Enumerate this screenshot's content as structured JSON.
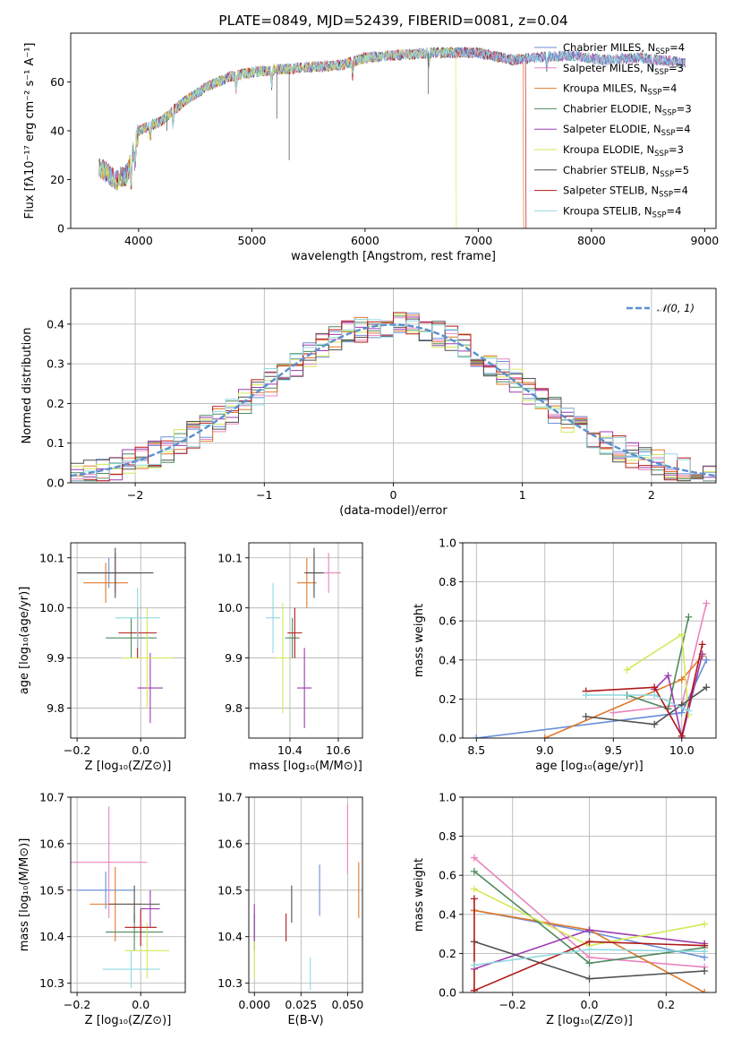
{
  "colors": {
    "Chabrier MILES": "#6a8fd8",
    "Salpeter MILES": "#e985be",
    "Kroupa MILES": "#e0792b",
    "Chabrier ELODIE": "#4f8a5f",
    "Salpeter ELODIE": "#9b3bb0",
    "Kroupa ELODIE": "#d3e85a",
    "Chabrier STELIB": "#505050",
    "Salpeter STELIB": "#b01818",
    "Kroupa STELIB": "#8fd9e0",
    "gaussian": "#5b8fd0"
  },
  "models": [
    "Chabrier MILES",
    "Salpeter MILES",
    "Kroupa MILES",
    "Chabrier ELODIE",
    "Salpeter ELODIE",
    "Kroupa ELODIE",
    "Chabrier STELIB",
    "Salpeter STELIB",
    "Kroupa STELIB"
  ],
  "chart_data": [
    {
      "id": "spectrum",
      "type": "line",
      "title": "PLATE=0849, MJD=52439, FIBERID=0081, z=0.04",
      "xlabel": "wavelength [Angstrom, rest frame]",
      "ylabel": "Flux [fλ10⁻¹⁷ erg cm⁻² s⁻¹ A⁻¹]",
      "xlim": [
        3400,
        9100
      ],
      "ylim": [
        0,
        80
      ],
      "xticks": [
        4000,
        5000,
        6000,
        7000,
        8000,
        9000
      ],
      "yticks": [
        0,
        20,
        40,
        60
      ],
      "continuum": [
        [
          3650,
          25
        ],
        [
          3800,
          20
        ],
        [
          3900,
          22
        ],
        [
          4000,
          40
        ],
        [
          4200,
          44
        ],
        [
          4400,
          52
        ],
        [
          4600,
          58
        ],
        [
          4800,
          62
        ],
        [
          5000,
          64
        ],
        [
          5200,
          65
        ],
        [
          5500,
          66
        ],
        [
          5800,
          67
        ],
        [
          6000,
          70
        ],
        [
          6300,
          71
        ],
        [
          6600,
          72
        ],
        [
          7000,
          72
        ],
        [
          7300,
          69
        ],
        [
          7500,
          70
        ],
        [
          7800,
          71
        ],
        [
          8100,
          69
        ],
        [
          8400,
          70
        ],
        [
          8800,
          68
        ]
      ],
      "legend": [
        {
          "label": "Chabrier MILES, N",
          "sub": "SSP",
          "tail": "=4"
        },
        {
          "label": "Salpeter MILES, N",
          "sub": "SSP",
          "tail": "=3"
        },
        {
          "label": "Kroupa MILES, N",
          "sub": "SSP",
          "tail": "=4"
        },
        {
          "label": "Chabrier ELODIE, N",
          "sub": "SSP",
          "tail": "=3"
        },
        {
          "label": "Salpeter ELODIE, N",
          "sub": "SSP",
          "tail": "=4"
        },
        {
          "label": "Kroupa ELODIE, N",
          "sub": "SSP",
          "tail": "=3"
        },
        {
          "label": "Chabrier STELIB, N",
          "sub": "SSP",
          "tail": "=5"
        },
        {
          "label": "Salpeter STELIB, N",
          "sub": "SSP",
          "tail": "=4"
        },
        {
          "label": "Kroupa STELIB, N",
          "sub": "SSP",
          "tail": "=4"
        }
      ],
      "legend_position": "top-right",
      "cutoffs": [
        {
          "model": "Kroupa ELODIE",
          "x": 6800
        },
        {
          "model": "Salpeter STELIB",
          "x": 7420
        },
        {
          "model": "Kroupa MILES",
          "x": 7400
        }
      ]
    },
    {
      "id": "residuals",
      "type": "line",
      "xlabel": "(data-model)/error",
      "ylabel": "Normed distribution",
      "xlim": [
        -2.5,
        2.5
      ],
      "ylim": [
        0,
        0.49
      ],
      "xticks": [
        -2,
        -1,
        0,
        1,
        2
      ],
      "yticks": [
        0.0,
        0.1,
        0.2,
        0.3,
        0.4
      ],
      "legend_label": "𝒩(0, 1)",
      "legend_position": "top-right",
      "series_kind": "step histograms of each model's residuals with a dashed N(0,1) curve"
    },
    {
      "id": "age_vs_Z",
      "type": "scatter",
      "xlabel": "Z [log₁₀(Z/Z⊙)]",
      "ylabel": "age  [log₁₀(age/yr)]",
      "xlim": [
        -0.22,
        0.14
      ],
      "ylim": [
        9.74,
        10.13
      ],
      "xticks": [
        -0.2,
        0.0
      ],
      "yticks": [
        9.8,
        9.9,
        10.0,
        10.1
      ],
      "points": [
        {
          "model": "Chabrier MILES",
          "x": -0.1,
          "y": 10.07,
          "xerr": 0.1,
          "yerr": 0.03
        },
        {
          "model": "Salpeter MILES",
          "x": -0.08,
          "y": 10.07,
          "xerr": 0.1,
          "yerr": 0.04
        },
        {
          "model": "Kroupa MILES",
          "x": -0.11,
          "y": 10.05,
          "xerr": 0.07,
          "yerr": 0.04
        },
        {
          "model": "Chabrier ELODIE",
          "x": -0.03,
          "y": 9.94,
          "xerr": 0.08,
          "yerr": 0.04
        },
        {
          "model": "Salpeter ELODIE",
          "x": 0.03,
          "y": 9.84,
          "xerr": 0.04,
          "yerr": 0.07
        },
        {
          "model": "Kroupa ELODIE",
          "x": 0.02,
          "y": 9.9,
          "xerr": 0.08,
          "yerr": 0.1
        },
        {
          "model": "Chabrier STELIB",
          "x": -0.08,
          "y": 10.07,
          "xerr": 0.12,
          "yerr": 0.05
        },
        {
          "model": "Salpeter STELIB",
          "x": -0.01,
          "y": 9.95,
          "xerr": 0.06,
          "yerr": 0.05
        },
        {
          "model": "Kroupa STELIB",
          "x": -0.01,
          "y": 9.98,
          "xerr": 0.07,
          "yerr": 0.06
        }
      ]
    },
    {
      "id": "age_vs_mass",
      "type": "scatter",
      "xlabel": "mass [log₁₀(M/M⊙)]",
      "ylabel": "",
      "xlim": [
        10.23,
        10.7
      ],
      "ylim": [
        9.74,
        10.13
      ],
      "xticks": [
        10.4,
        10.6
      ],
      "yticks": [
        9.8,
        9.9,
        10.0,
        10.1
      ],
      "points": [
        {
          "model": "Chabrier MILES",
          "x": 10.5,
          "y": 10.07,
          "xerr": 0.03,
          "yerr": 0.04
        },
        {
          "model": "Salpeter MILES",
          "x": 10.56,
          "y": 10.07,
          "xerr": 0.05,
          "yerr": 0.04
        },
        {
          "model": "Kroupa MILES",
          "x": 10.47,
          "y": 10.05,
          "xerr": 0.04,
          "yerr": 0.05
        },
        {
          "model": "Chabrier ELODIE",
          "x": 10.41,
          "y": 9.94,
          "xerr": 0.03,
          "yerr": 0.04
        },
        {
          "model": "Salpeter ELODIE",
          "x": 10.46,
          "y": 9.84,
          "xerr": 0.03,
          "yerr": 0.08
        },
        {
          "model": "Kroupa ELODIE",
          "x": 10.37,
          "y": 9.9,
          "xerr": 0.03,
          "yerr": 0.11
        },
        {
          "model": "Chabrier STELIB",
          "x": 10.5,
          "y": 10.07,
          "xerr": 0.04,
          "yerr": 0.05
        },
        {
          "model": "Salpeter STELIB",
          "x": 10.42,
          "y": 9.95,
          "xerr": 0.03,
          "yerr": 0.05
        },
        {
          "model": "Kroupa STELIB",
          "x": 10.33,
          "y": 9.98,
          "xerr": 0.03,
          "yerr": 0.07
        }
      ]
    },
    {
      "id": "massweight_vs_age",
      "type": "line",
      "xlabel": "age  [log₁₀(age/yr)]",
      "ylabel": "mass weight",
      "xlim": [
        8.4,
        10.25
      ],
      "ylim": [
        0.0,
        1.0
      ],
      "xticks": [
        8.5,
        9.0,
        9.5,
        10.0
      ],
      "yticks": [
        0.0,
        0.2,
        0.4,
        0.6,
        0.8,
        1.0
      ],
      "series": [
        {
          "model": "Chabrier MILES",
          "x": [
            8.5,
            10.0,
            10.18
          ],
          "y": [
            0.0,
            0.13,
            0.4
          ]
        },
        {
          "model": "Salpeter MILES",
          "x": [
            9.5,
            10.0,
            10.18
          ],
          "y": [
            0.13,
            0.17,
            0.69
          ]
        },
        {
          "model": "Kroupa MILES",
          "x": [
            9.0,
            10.0,
            10.15
          ],
          "y": [
            0.0,
            0.3,
            0.42
          ]
        },
        {
          "model": "Chabrier ELODIE",
          "x": [
            9.6,
            9.9,
            10.05
          ],
          "y": [
            0.22,
            0.15,
            0.62
          ]
        },
        {
          "model": "Salpeter ELODIE",
          "x": [
            9.8,
            9.9,
            10.0,
            10.15
          ],
          "y": [
            0.25,
            0.32,
            0.0,
            0.43
          ]
        },
        {
          "model": "Kroupa ELODIE",
          "x": [
            9.6,
            10.0,
            10.05
          ],
          "y": [
            0.35,
            0.53,
            0.12
          ]
        },
        {
          "model": "Chabrier STELIB",
          "x": [
            9.3,
            9.8,
            10.0,
            10.18
          ],
          "y": [
            0.11,
            0.07,
            0.17,
            0.26
          ]
        },
        {
          "model": "Salpeter STELIB",
          "x": [
            9.3,
            9.8,
            10.0,
            10.15
          ],
          "y": [
            0.24,
            0.26,
            0.01,
            0.48
          ]
        },
        {
          "model": "Kroupa STELIB",
          "x": [
            9.3,
            9.8,
            10.05
          ],
          "y": [
            0.22,
            0.22,
            0.14
          ]
        }
      ]
    },
    {
      "id": "mass_vs_Z",
      "type": "scatter",
      "xlabel": "Z [log₁₀(Z/Z⊙)]",
      "ylabel": "mass [log₁₀(M/M⊙)]",
      "xlim": [
        -0.22,
        0.14
      ],
      "ylim": [
        10.28,
        10.7
      ],
      "xticks": [
        -0.2,
        0.0
      ],
      "yticks": [
        10.3,
        10.4,
        10.5,
        10.6,
        10.7
      ],
      "points": [
        {
          "model": "Chabrier MILES",
          "x": -0.11,
          "y": 10.5,
          "xerr": 0.09,
          "yerr": 0.04
        },
        {
          "model": "Salpeter MILES",
          "x": -0.1,
          "y": 10.56,
          "xerr": 0.12,
          "yerr": 0.12
        },
        {
          "model": "Kroupa MILES",
          "x": -0.08,
          "y": 10.47,
          "xerr": 0.08,
          "yerr": 0.08
        },
        {
          "model": "Chabrier ELODIE",
          "x": -0.02,
          "y": 10.41,
          "xerr": 0.09,
          "yerr": 0.04
        },
        {
          "model": "Salpeter ELODIE",
          "x": 0.03,
          "y": 10.46,
          "xerr": 0.03,
          "yerr": 0.04
        },
        {
          "model": "Kroupa ELODIE",
          "x": 0.02,
          "y": 10.37,
          "xerr": 0.07,
          "yerr": 0.06
        },
        {
          "model": "Chabrier STELIB",
          "x": -0.02,
          "y": 10.47,
          "xerr": 0.08,
          "yerr": 0.04
        },
        {
          "model": "Salpeter STELIB",
          "x": 0.0,
          "y": 10.42,
          "xerr": 0.05,
          "yerr": 0.04
        },
        {
          "model": "Kroupa STELIB",
          "x": -0.03,
          "y": 10.33,
          "xerr": 0.09,
          "yerr": 0.04
        }
      ]
    },
    {
      "id": "mass_vs_EBV",
      "type": "scatter",
      "xlabel": "E(B-V)",
      "ylabel": "",
      "xlim": [
        -0.003,
        0.058
      ],
      "ylim": [
        10.28,
        10.7
      ],
      "xticks": [
        0.0,
        0.025,
        0.05
      ],
      "xticklabels": [
        "0.000",
        "0.025",
        "0.050"
      ],
      "yticks": [
        10.3,
        10.4,
        10.5,
        10.6,
        10.7
      ],
      "points": [
        {
          "model": "Chabrier MILES",
          "x": 0.035,
          "y": 10.5,
          "yerr": 0.055
        },
        {
          "model": "Salpeter MILES",
          "x": 0.05,
          "y": 10.61,
          "yerr": 0.075
        },
        {
          "model": "Kroupa MILES",
          "x": 0.056,
          "y": 10.5,
          "yerr": 0.06
        },
        {
          "model": "Chabrier ELODIE",
          "x": 0.0,
          "y": 10.41,
          "yerr": 0.04
        },
        {
          "model": "Salpeter ELODIE",
          "x": 0.0,
          "y": 10.43,
          "yerr": 0.04
        },
        {
          "model": "Kroupa ELODIE",
          "x": 0.0,
          "y": 10.35,
          "yerr": 0.04
        },
        {
          "model": "Chabrier STELIB",
          "x": 0.02,
          "y": 10.47,
          "yerr": 0.04
        },
        {
          "model": "Salpeter STELIB",
          "x": 0.017,
          "y": 10.42,
          "yerr": 0.03
        },
        {
          "model": "Kroupa STELIB",
          "x": 0.03,
          "y": 10.32,
          "yerr": 0.035
        }
      ]
    },
    {
      "id": "massweight_vs_Z",
      "type": "line",
      "xlabel": "Z [log₁₀(Z/Z⊙)]",
      "ylabel": "mass weight",
      "xlim": [
        -0.33,
        0.33
      ],
      "ylim": [
        0.0,
        1.0
      ],
      "xticks": [
        -0.2,
        0.0,
        0.2
      ],
      "yticks": [
        0.0,
        0.2,
        0.4,
        0.6,
        0.8,
        1.0
      ],
      "series": [
        {
          "model": "Chabrier MILES",
          "x": [
            -0.3,
            0.0,
            0.3
          ],
          "y": [
            0.42,
            0.31,
            0.18
          ]
        },
        {
          "model": "Salpeter MILES",
          "x": [
            -0.3,
            0.0,
            0.3
          ],
          "y": [
            0.69,
            0.18,
            0.13
          ]
        },
        {
          "model": "Kroupa MILES",
          "x": [
            -0.3,
            0.0,
            0.3
          ],
          "y": [
            0.42,
            0.32,
            0.0
          ]
        },
        {
          "model": "Chabrier ELODIE",
          "x": [
            -0.3,
            0.0,
            0.3
          ],
          "y": [
            0.62,
            0.15,
            0.23
          ]
        },
        {
          "model": "Salpeter ELODIE",
          "x": [
            -0.3,
            0.0,
            0.3
          ],
          "y": [
            0.12,
            0.32,
            0.25
          ]
        },
        {
          "model": "Kroupa ELODIE",
          "x": [
            -0.3,
            0.0,
            0.3
          ],
          "y": [
            0.53,
            0.24,
            0.35
          ]
        },
        {
          "model": "Chabrier STELIB",
          "x": [
            -0.3,
            0.0,
            0.3
          ],
          "y": [
            0.26,
            0.07,
            0.11
          ]
        },
        {
          "model": "Salpeter STELIB",
          "x": [
            -0.3,
            -0.3,
            0.0,
            0.3
          ],
          "y": [
            0.48,
            0.01,
            0.26,
            0.24
          ]
        },
        {
          "model": "Kroupa STELIB",
          "x": [
            -0.3,
            0.0,
            0.3
          ],
          "y": [
            0.14,
            0.22,
            0.21
          ]
        }
      ]
    }
  ]
}
